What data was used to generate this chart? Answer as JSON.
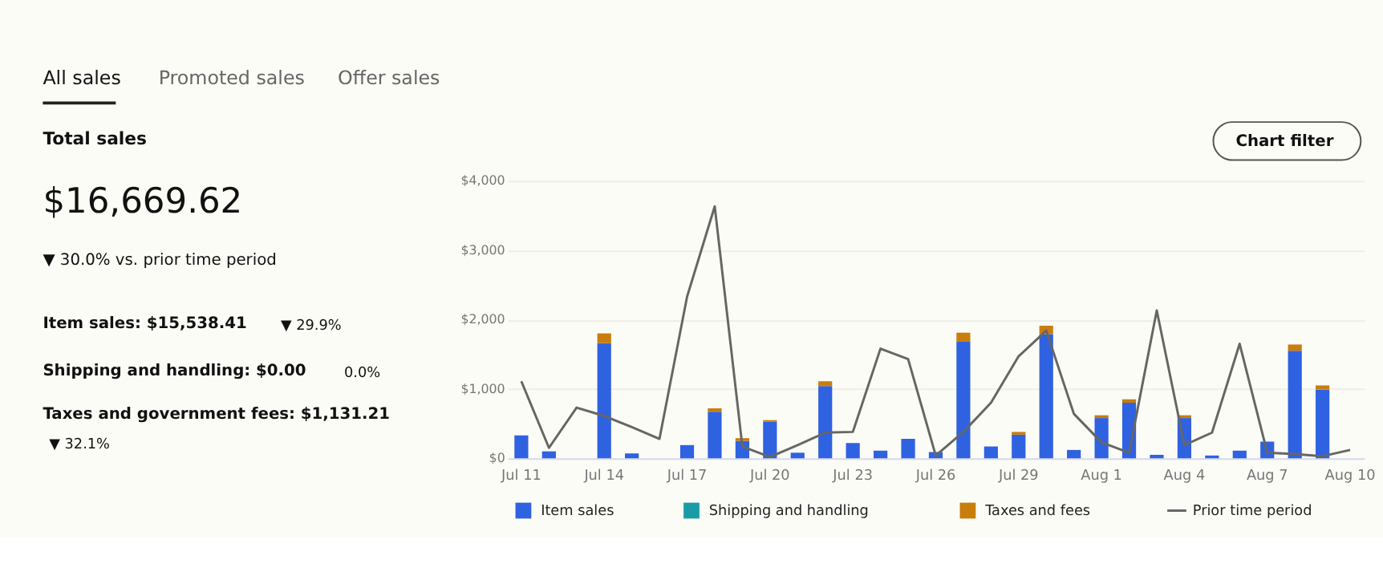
{
  "chart_data": [
    {
      "type": "other",
      "title": "Total sales",
      "annotations": [
        "All sales",
        "Promoted sales",
        "Offer sales",
        "$16,669.62",
        "▼ 30.0% vs. prior time period",
        "Item sales: $15,538.41",
        "▼ 29.9%",
        "Shipping and handling: $0.00",
        "0.0%",
        "Taxes and government fees: $1,131.21",
        "▼ 32.1%"
      ]
    },
    {
      "type": "bar",
      "stacked": true,
      "grid": "y",
      "legend": "bottom",
      "annotations": [
        "Chart filter"
      ],
      "categories": [
        "Jul 11",
        null,
        null,
        "Jul 14",
        null,
        null,
        "Jul 17",
        null,
        null,
        "Jul 20",
        null,
        null,
        "Jul 23",
        null,
        null,
        "Jul 26",
        null,
        null,
        "Jul 29",
        null,
        null,
        "Aug 1",
        null,
        null,
        "Aug 4",
        null,
        null,
        "Aug 7",
        null,
        null,
        "Aug 10"
      ],
      "ylim": [
        0,
        4000
      ],
      "yticks": [
        {
          "value": 0,
          "label": "$0"
        },
        {
          "value": 1000,
          "label": "$1,000"
        },
        {
          "value": 2000,
          "label": "$2,000"
        },
        {
          "value": 3000,
          "label": "$3,000"
        },
        {
          "value": 4000,
          "label": "$4,000"
        }
      ],
      "series": [
        {
          "name": "Item sales",
          "color": "#2f62e0",
          "values": [
            330,
            100,
            null,
            1660,
            70,
            null,
            190,
            670,
            250,
            530,
            80,
            1040,
            220,
            110,
            280,
            90,
            1680,
            170,
            340,
            1790,
            120,
            580,
            800,
            50,
            580,
            40,
            110,
            240,
            1550,
            990,
            null
          ]
        },
        {
          "name": "Shipping and handling",
          "color": "#1a9ba8",
          "values": [
            0,
            0,
            0,
            0,
            0,
            0,
            0,
            0,
            0,
            0,
            0,
            0,
            0,
            0,
            0,
            0,
            0,
            0,
            0,
            0,
            0,
            0,
            0,
            0,
            0,
            0,
            0,
            0,
            0,
            0,
            0
          ]
        },
        {
          "name": "Taxes and fees",
          "color": "#c97d0c",
          "values": [
            null,
            null,
            null,
            140,
            null,
            null,
            null,
            50,
            40,
            20,
            null,
            70,
            null,
            null,
            null,
            null,
            130,
            null,
            40,
            120,
            null,
            40,
            50,
            null,
            40,
            null,
            null,
            null,
            90,
            60,
            null
          ]
        },
        {
          "name": "Prior time period",
          "type": "line",
          "color": "#666666",
          "values": [
            1110,
            150,
            730,
            610,
            450,
            280,
            2330,
            3630,
            170,
            20,
            190,
            370,
            380,
            1580,
            1430,
            40,
            380,
            800,
            1470,
            1840,
            640,
            230,
            80,
            2130,
            190,
            370,
            1650,
            80,
            60,
            30,
            120
          ]
        }
      ]
    }
  ]
}
